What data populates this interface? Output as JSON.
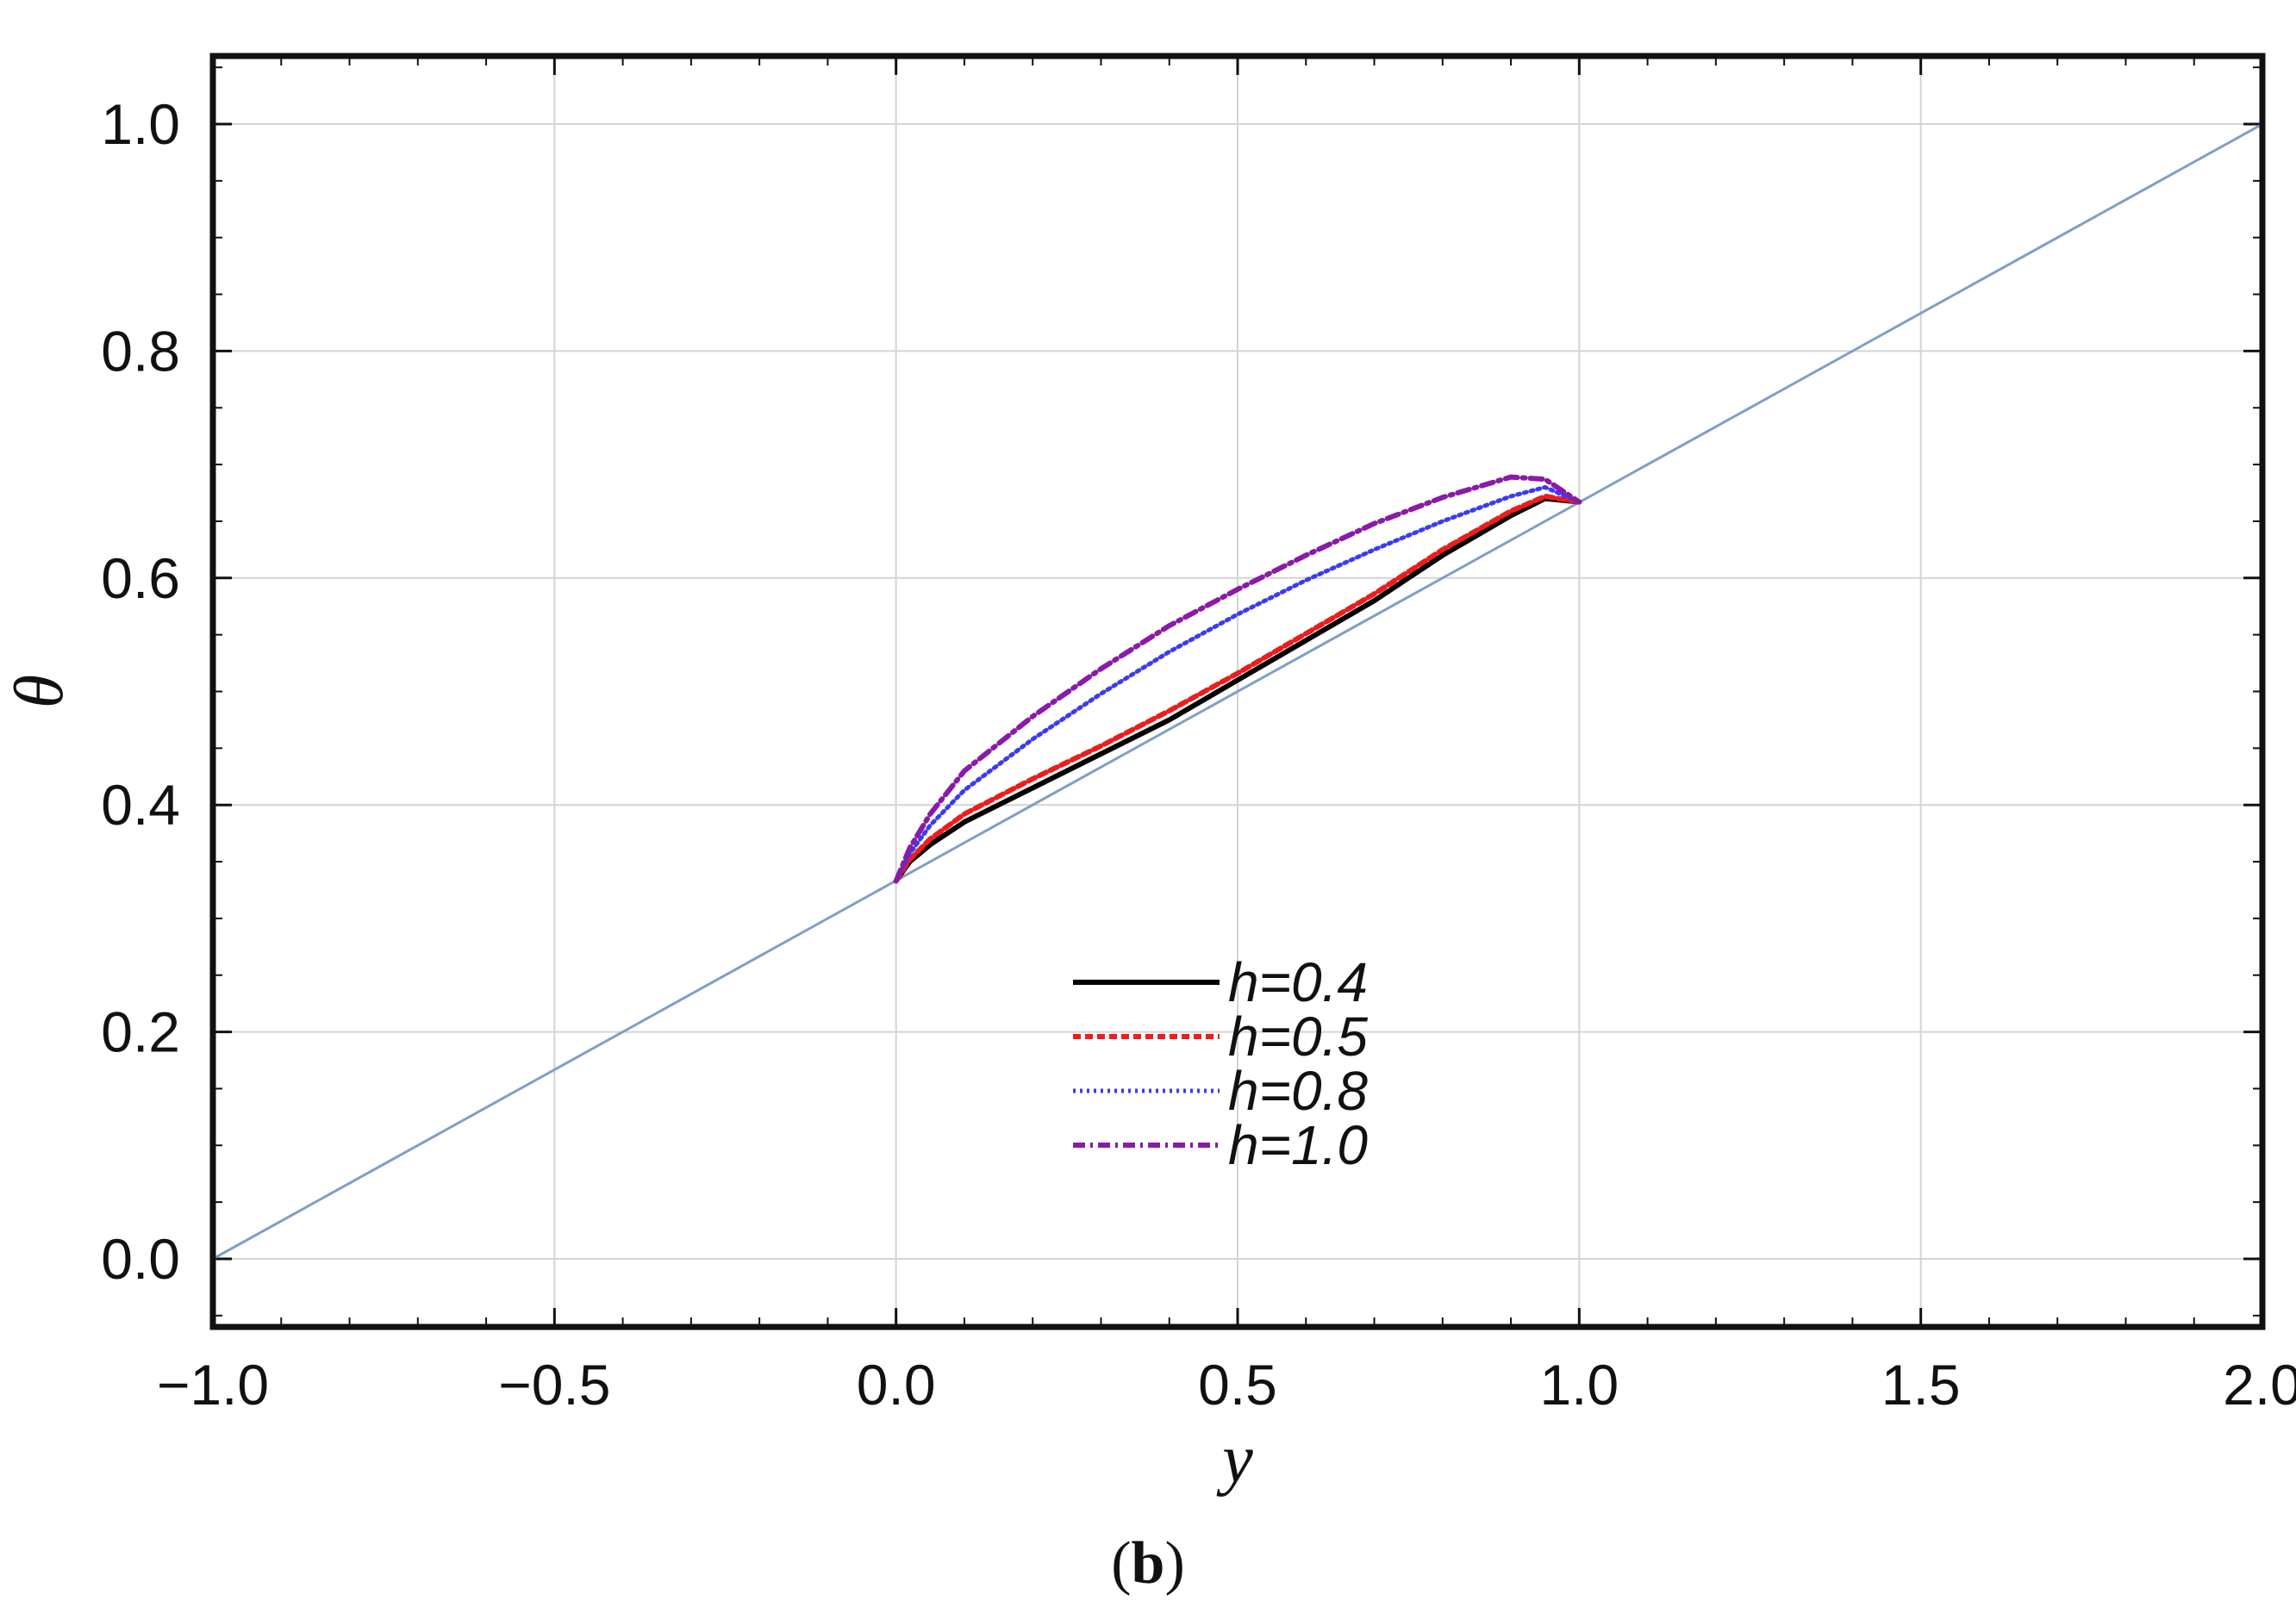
{
  "chart_data": {
    "type": "line",
    "xlabel": "y",
    "ylabel": "θ",
    "xlim": [
      -1.0,
      2.0
    ],
    "ylim": [
      -0.06,
      1.06
    ],
    "xticks": [
      -1.0,
      -0.5,
      0.0,
      0.5,
      1.0,
      1.5,
      2.0
    ],
    "xtick_labels": [
      "−1.0",
      "−0.5",
      "0.0",
      "0.5",
      "1.0",
      "1.5",
      "2.0"
    ],
    "yticks": [
      0.0,
      0.2,
      0.4,
      0.6,
      0.8,
      1.0
    ],
    "ytick_labels": [
      "0.0",
      "0.2",
      "0.4",
      "0.6",
      "0.8",
      "1.0"
    ],
    "grid": true,
    "legend_position": "lower-center",
    "baseline": {
      "x": [
        -1.0,
        2.0
      ],
      "y": [
        0.0,
        1.0
      ],
      "color": "#7f9fc6",
      "style": "solid"
    },
    "series": [
      {
        "name": "h=0.4",
        "color": "#000000",
        "style": "solid",
        "x": [
          0.0,
          0.02,
          0.05,
          0.1,
          0.2,
          0.3,
          0.4,
          0.5,
          0.6,
          0.7,
          0.8,
          0.9,
          0.95,
          1.0
        ],
        "y": [
          0.333,
          0.35,
          0.365,
          0.385,
          0.415,
          0.445,
          0.475,
          0.51,
          0.545,
          0.58,
          0.62,
          0.655,
          0.67,
          0.667
        ]
      },
      {
        "name": "h=0.5",
        "color": "#ee1c1c",
        "style": "dashed",
        "x": [
          0.0,
          0.02,
          0.05,
          0.1,
          0.2,
          0.3,
          0.4,
          0.5,
          0.6,
          0.7,
          0.8,
          0.9,
          0.95,
          1.0
        ],
        "y": [
          0.333,
          0.352,
          0.37,
          0.392,
          0.423,
          0.452,
          0.483,
          0.516,
          0.551,
          0.586,
          0.625,
          0.659,
          0.672,
          0.667
        ]
      },
      {
        "name": "h=0.8",
        "color": "#3b3bf0",
        "style": "dotted",
        "x": [
          0.0,
          0.02,
          0.05,
          0.1,
          0.2,
          0.3,
          0.4,
          0.5,
          0.6,
          0.7,
          0.8,
          0.9,
          0.95,
          1.0
        ],
        "y": [
          0.333,
          0.357,
          0.382,
          0.413,
          0.458,
          0.498,
          0.535,
          0.568,
          0.598,
          0.625,
          0.65,
          0.672,
          0.68,
          0.667
        ]
      },
      {
        "name": "h=1.0",
        "color": "#8a1aa8",
        "style": "dashdot",
        "x": [
          0.0,
          0.02,
          0.05,
          0.1,
          0.2,
          0.3,
          0.4,
          0.5,
          0.6,
          0.7,
          0.8,
          0.9,
          0.95,
          1.0
        ],
        "y": [
          0.333,
          0.362,
          0.392,
          0.43,
          0.478,
          0.52,
          0.558,
          0.59,
          0.62,
          0.648,
          0.671,
          0.689,
          0.687,
          0.667
        ]
      }
    ]
  },
  "caption": {
    "open": "(",
    "letter": "b",
    "close": ")"
  }
}
